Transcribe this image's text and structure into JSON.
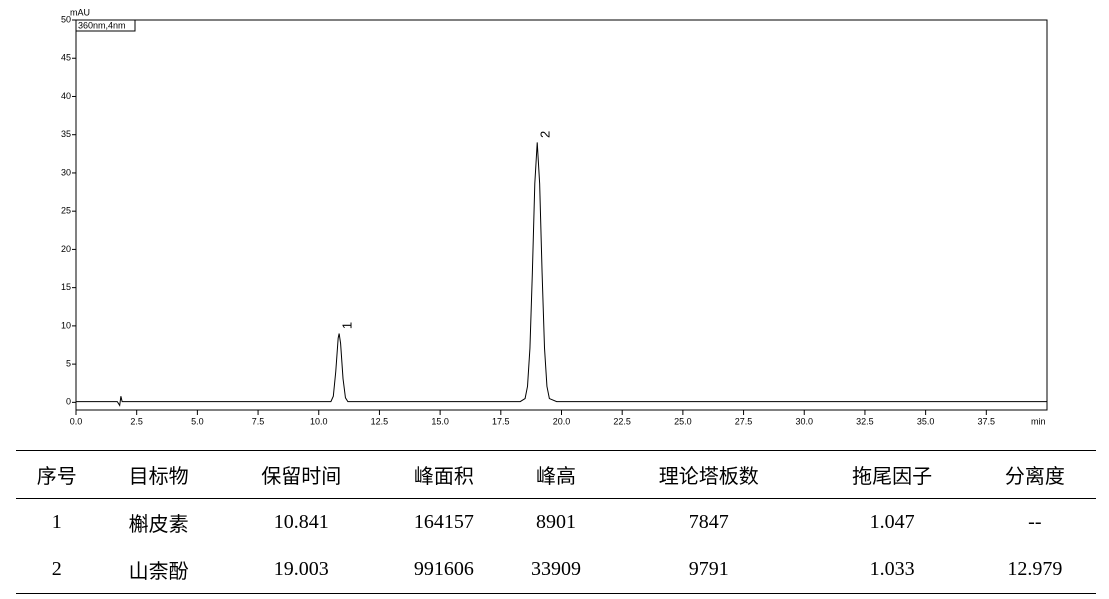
{
  "chart_data": {
    "type": "line",
    "y_label": "mAU",
    "x_label": "min",
    "legend_text": "360nm,4nm",
    "annotations": [
      {
        "text": "1",
        "x": 10.841,
        "y": 9
      },
      {
        "text": "2",
        "x": 19.003,
        "y": 34
      }
    ],
    "xlim": [
      0,
      40
    ],
    "ylim": [
      -1,
      50
    ],
    "xticks": [
      {
        "value": 0,
        "label": "0.0"
      },
      {
        "value": 2.5,
        "label": "2.5"
      },
      {
        "value": 5,
        "label": "5.0"
      },
      {
        "value": 7.5,
        "label": "7.5"
      },
      {
        "value": 10,
        "label": "10.0"
      },
      {
        "value": 12.5,
        "label": "12.5"
      },
      {
        "value": 15,
        "label": "15.0"
      },
      {
        "value": 17.5,
        "label": "17.5"
      },
      {
        "value": 20,
        "label": "20.0"
      },
      {
        "value": 22.5,
        "label": "22.5"
      },
      {
        "value": 25,
        "label": "25.0"
      },
      {
        "value": 27.5,
        "label": "27.5"
      },
      {
        "value": 30,
        "label": "30.0"
      },
      {
        "value": 32.5,
        "label": "32.5"
      },
      {
        "value": 35,
        "label": "35.0"
      },
      {
        "value": 37.5,
        "label": "37.5"
      }
    ],
    "yticks": [
      0,
      5,
      10,
      15,
      20,
      25,
      30,
      35,
      40,
      45,
      50
    ],
    "x": [
      0,
      1.7,
      1.8,
      1.85,
      1.9,
      2.0,
      10.3,
      10.5,
      10.6,
      10.7,
      10.8,
      10.84,
      10.9,
      11.0,
      11.1,
      11.2,
      11.4,
      18.3,
      18.5,
      18.6,
      18.7,
      18.8,
      18.9,
      19.0,
      19.1,
      19.2,
      19.3,
      19.4,
      19.5,
      19.8,
      40
    ],
    "series": [
      {
        "color": "#000000",
        "values": [
          0.1,
          0.1,
          -0.4,
          0.8,
          0.1,
          0.1,
          0.1,
          0.1,
          0.8,
          4.0,
          8.4,
          9,
          7.7,
          3.1,
          0.6,
          0.1,
          0.1,
          0.1,
          0.5,
          2.1,
          7.1,
          17,
          28.6,
          34,
          28.6,
          17,
          7.1,
          2.1,
          0.5,
          0.1,
          0.1
        ]
      }
    ]
  },
  "table": {
    "header": [
      "序号",
      "目标物",
      "保留时间",
      "峰面积",
      "峰高",
      "理论塔板数",
      "拖尾因子",
      "分离度"
    ],
    "rows": [
      [
        "1",
        "槲皮素",
        "10.841",
        "164157",
        "8901",
        "7847",
        "1.047",
        "--"
      ],
      [
        "2",
        "山柰酚",
        "19.003",
        "991606",
        "33909",
        "9791",
        "1.033",
        "12.979"
      ]
    ]
  }
}
